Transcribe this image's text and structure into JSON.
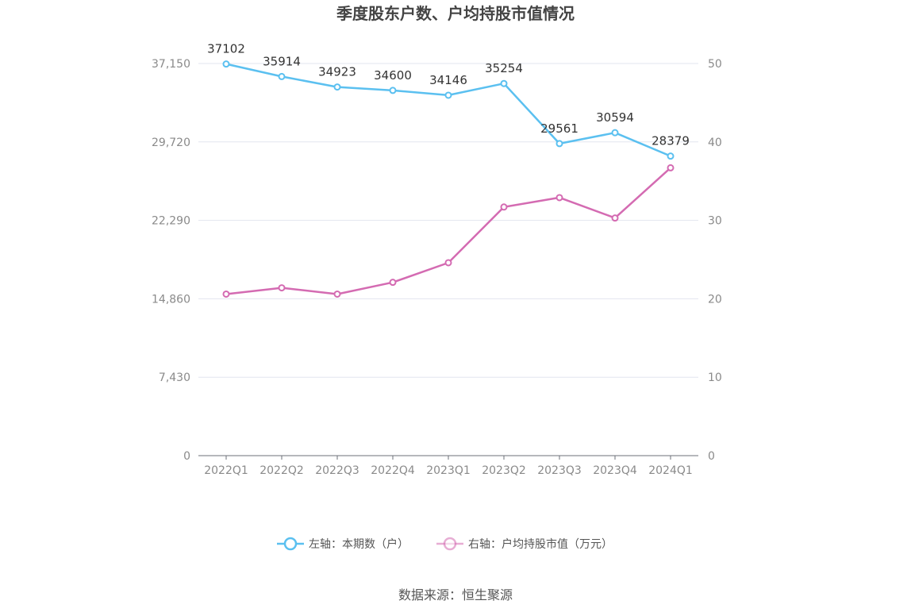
{
  "chart_data": {
    "type": "line",
    "title": "季度股东户数、户均持股市值情况",
    "categories": [
      "2022Q1",
      "2022Q2",
      "2022Q3",
      "2022Q4",
      "2023Q1",
      "2023Q2",
      "2023Q3",
      "2023Q4",
      "2024Q1"
    ],
    "left_axis": {
      "ticks": [
        "0",
        "7,430",
        "14,860",
        "22,290",
        "29,720",
        "37,150"
      ],
      "range": [
        0,
        37150
      ]
    },
    "right_axis": {
      "ticks": [
        "0",
        "10",
        "20",
        "30",
        "40",
        "50"
      ],
      "range": [
        0,
        50
      ]
    },
    "series": [
      {
        "name": "左轴：本期数（户）",
        "axis": "left",
        "color": "#5bc0f0",
        "values": [
          37102,
          35914,
          34923,
          34600,
          34146,
          35254,
          29561,
          30594,
          28379
        ],
        "labels": [
          "37102",
          "35914",
          "34923",
          "34600",
          "34146",
          "35254",
          "29561",
          "30594",
          "28379"
        ]
      },
      {
        "name": "右轴：户均持股市值（万元）",
        "axis": "right",
        "color": "#d46bb2",
        "values": [
          20.6,
          21.4,
          20.6,
          22.1,
          24.6,
          31.7,
          32.9,
          30.3,
          36.7
        ]
      }
    ],
    "grid": true,
    "legend_position": "bottom-center"
  },
  "footer": {
    "source": "数据来源：恒生聚源"
  }
}
